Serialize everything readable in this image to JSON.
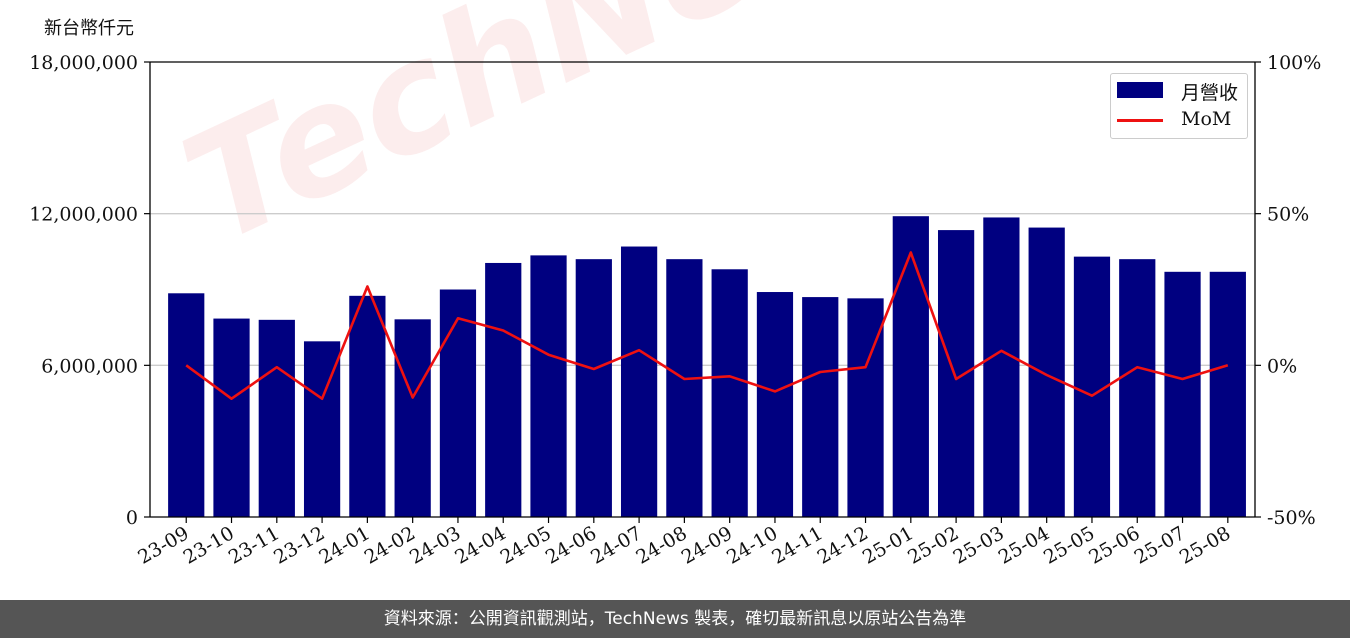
{
  "unit_label": "新台幣仟元",
  "footer_text": "資料來源：公開資訊觀測站，TechNews 製表，確切最新訊息以原站公告為準",
  "watermark": "TechNews",
  "legend": {
    "bar_label": "月營收",
    "line_label": "MoM"
  },
  "colors": {
    "bar": "#000080",
    "line": "#ee1111",
    "grid": "#cccccc"
  },
  "chart_data": {
    "type": "bar",
    "categories": [
      "23-09",
      "23-10",
      "23-11",
      "23-12",
      "24-01",
      "24-02",
      "24-03",
      "24-04",
      "24-05",
      "24-06",
      "24-07",
      "24-08",
      "24-09",
      "24-10",
      "24-11",
      "24-12",
      "25-01",
      "25-02",
      "25-03",
      "25-04",
      "25-05",
      "25-06",
      "25-07",
      "25-08"
    ],
    "series": [
      {
        "name": "月營收",
        "axis": "left",
        "type": "bar",
        "values": [
          8850000,
          7850000,
          7800000,
          6950000,
          8750000,
          7820000,
          9000000,
          10050000,
          10350000,
          10200000,
          10700000,
          10200000,
          9800000,
          8900000,
          8700000,
          8650000,
          11900000,
          11350000,
          11850000,
          11450000,
          10300000,
          10200000,
          9700000,
          9700000
        ]
      },
      {
        "name": "MoM",
        "axis": "right",
        "type": "line",
        "values": [
          0,
          -11,
          -0.6,
          -11,
          26,
          -10.6,
          15.5,
          11.5,
          3.5,
          -1.2,
          5,
          -4.5,
          -3.6,
          -8.6,
          -2.2,
          -0.6,
          37.2,
          -4.5,
          4.8,
          -3.2,
          -10,
          -0.6,
          -4.5,
          0
        ]
      }
    ],
    "y_left": {
      "ylim": [
        0,
        18000000
      ],
      "ticks": [
        "0",
        "6,000,000",
        "12,000,000",
        "18,000,000"
      ],
      "tick_values": [
        0,
        6000000,
        12000000,
        18000000
      ]
    },
    "y_right": {
      "ylim": [
        -50,
        100
      ],
      "ticks": [
        "-50%",
        "0%",
        "50%",
        "100%"
      ],
      "tick_values": [
        -50,
        0,
        50,
        100
      ]
    },
    "grid": true,
    "legend_position": "top-right"
  }
}
